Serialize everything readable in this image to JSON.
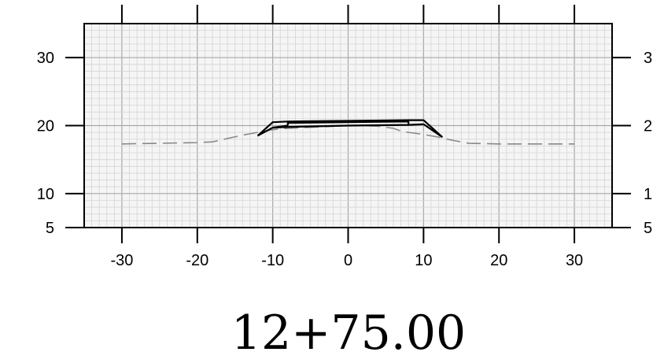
{
  "chart_data": {
    "type": "line",
    "title": "12+75.00",
    "xlabel": "",
    "ylabel": "",
    "xlim": [
      -35,
      35
    ],
    "ylim": [
      5,
      35
    ],
    "x_ticks": [
      -30,
      -20,
      -10,
      0,
      10,
      20,
      30
    ],
    "x_tick_labels": [
      "-30",
      "-20",
      "-10",
      "0",
      "10",
      "20",
      "30"
    ],
    "y_ticks": [
      5,
      10,
      20,
      30
    ],
    "y_tick_labels": [
      "5",
      "10",
      "20",
      "30"
    ],
    "right_y_tick_labels": [
      "5",
      "1",
      "2",
      "3"
    ],
    "grid": true,
    "minor_grid_step": 1,
    "major_grid_step": 10,
    "series": [
      {
        "style": "dashed",
        "color": "#888888",
        "points": [
          [
            -30,
            17.3
          ],
          [
            -20,
            17.5
          ],
          [
            -18,
            17.6
          ],
          [
            -16,
            18.1
          ],
          [
            -14,
            18.6
          ],
          [
            -12,
            19.0
          ],
          [
            -10,
            19.4
          ],
          [
            -8,
            19.6
          ],
          [
            -6,
            19.7
          ],
          [
            -4,
            19.8
          ],
          [
            -2,
            19.9
          ],
          [
            0,
            20.0
          ],
          [
            2,
            20.0
          ],
          [
            4,
            19.9
          ],
          [
            6,
            19.6
          ],
          [
            7,
            19.2
          ],
          [
            8,
            19.0
          ],
          [
            10,
            18.7
          ],
          [
            12,
            18.3
          ],
          [
            14,
            17.8
          ],
          [
            16,
            17.4
          ],
          [
            20,
            17.3
          ],
          [
            30,
            17.3
          ]
        ]
      },
      {
        "style": "solid",
        "color": "#000000",
        "points": [
          [
            -12,
            18.5
          ],
          [
            -10,
            20.5
          ],
          [
            -8,
            20.6
          ],
          [
            0,
            20.7
          ],
          [
            8,
            20.8
          ],
          [
            10,
            20.8
          ],
          [
            12.5,
            18.3
          ]
        ]
      },
      {
        "style": "solid",
        "color": "#000000",
        "points": [
          [
            -10,
            19.7
          ],
          [
            -8,
            19.8
          ],
          [
            0,
            20.0
          ],
          [
            8,
            20.1
          ],
          [
            10,
            20.2
          ]
        ]
      },
      {
        "style": "solid",
        "color": "#000000",
        "points": [
          [
            -8,
            20.0
          ],
          [
            -8,
            20.4
          ],
          [
            0,
            20.5
          ],
          [
            8,
            20.6
          ],
          [
            8,
            20.0
          ]
        ]
      },
      {
        "style": "solid",
        "color": "#000000",
        "points": [
          [
            -12,
            18.5
          ],
          [
            -10,
            19.7
          ],
          [
            -8,
            20.0
          ]
        ]
      },
      {
        "style": "solid",
        "color": "#000000",
        "points": [
          [
            10,
            20.2
          ],
          [
            12.5,
            18.3
          ]
        ]
      }
    ]
  },
  "colors": {
    "minor_grid": "#d4d4d4",
    "major_grid": "#a8a8a8",
    "plot_background": "#f5f5f5",
    "frame": "#000000"
  }
}
